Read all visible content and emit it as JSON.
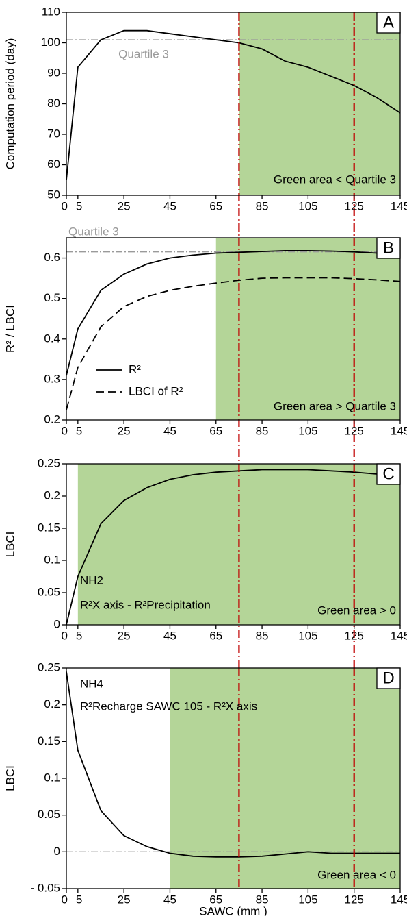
{
  "chart_data": [
    {
      "type": "line",
      "panel": "A",
      "ylabel": "Computation period  (day)",
      "x": [
        0,
        5,
        15,
        25,
        35,
        45,
        55,
        65,
        75,
        85,
        95,
        105,
        115,
        125,
        135,
        145
      ],
      "series": [
        {
          "name": null,
          "color": "#000000",
          "dash": false,
          "values": [
            55,
            92,
            101,
            104,
            104,
            103,
            102,
            101,
            100,
            98,
            94,
            92,
            89,
            86,
            82,
            77
          ]
        }
      ],
      "xlim": [
        0,
        145
      ],
      "xticks": [
        0,
        5,
        25,
        45,
        65,
        85,
        105,
        125,
        145
      ],
      "ylim": [
        50,
        110
      ],
      "yticks": [
        50,
        60,
        70,
        80,
        90,
        100,
        110
      ],
      "shade": [
        75,
        145
      ],
      "vlines": [
        75,
        125
      ],
      "hline": {
        "value": 101,
        "label": "Quartile 3"
      },
      "notes": [
        "Green area < Quartile 3"
      ]
    },
    {
      "type": "line",
      "panel": "B",
      "ylabel": "R² / LBCI",
      "legend": true,
      "x": [
        0,
        5,
        15,
        25,
        35,
        45,
        55,
        65,
        75,
        85,
        95,
        105,
        115,
        125,
        135,
        145
      ],
      "series": [
        {
          "name": "R²",
          "color": "#000000",
          "dash": false,
          "values": [
            0.31,
            0.425,
            0.52,
            0.56,
            0.585,
            0.6,
            0.607,
            0.612,
            0.614,
            0.616,
            0.618,
            0.618,
            0.617,
            0.615,
            0.612,
            0.608
          ]
        },
        {
          "name": "LBCI of R²",
          "color": "#000000",
          "dash": true,
          "values": [
            0.225,
            0.33,
            0.43,
            0.48,
            0.505,
            0.52,
            0.53,
            0.538,
            0.545,
            0.55,
            0.551,
            0.551,
            0.551,
            0.549,
            0.546,
            0.542
          ]
        }
      ],
      "xlim": [
        0,
        145
      ],
      "xticks": [
        0,
        5,
        25,
        45,
        65,
        85,
        105,
        125,
        145
      ],
      "ylim": [
        0.2,
        0.65
      ],
      "yticks": [
        0.2,
        0.3,
        0.4,
        0.5,
        0.6
      ],
      "shade": [
        65,
        145
      ],
      "vlines": [
        75,
        125
      ],
      "hline": {
        "value": 0.615,
        "label": "Quartile 3"
      },
      "notes": [
        "Green area > Quartile 3"
      ]
    },
    {
      "type": "line",
      "panel": "C",
      "ylabel": "LBCI",
      "x": [
        0,
        5,
        15,
        25,
        35,
        45,
        55,
        65,
        75,
        85,
        95,
        105,
        115,
        125,
        135,
        145
      ],
      "series": [
        {
          "name": null,
          "color": "#000000",
          "dash": false,
          "values": [
            0,
            0.075,
            0.157,
            0.193,
            0.213,
            0.226,
            0.233,
            0.237,
            0.239,
            0.241,
            0.241,
            0.241,
            0.239,
            0.237,
            0.234,
            0.233
          ]
        }
      ],
      "xlim": [
        0,
        145
      ],
      "xticks": [
        0,
        5,
        25,
        45,
        65,
        85,
        105,
        125,
        145
      ],
      "ylim": [
        0,
        0.25
      ],
      "yticks": [
        0,
        0.05,
        0.1,
        0.15,
        0.2,
        0.25
      ],
      "shade": [
        5,
        145
      ],
      "vlines": [
        75,
        125
      ],
      "notes": [
        "NH2",
        "R²X axis - R²Precipitation",
        "Green area > 0"
      ]
    },
    {
      "type": "line",
      "panel": "D",
      "ylabel": "LBCI",
      "xlabel": "SAWC (mm )",
      "x": [
        0,
        5,
        15,
        25,
        35,
        45,
        55,
        65,
        75,
        85,
        95,
        105,
        115,
        125,
        135,
        145
      ],
      "series": [
        {
          "name": null,
          "color": "#000000",
          "dash": false,
          "values": [
            0.245,
            0.138,
            0.056,
            0.022,
            0.007,
            -0.002,
            -0.006,
            -0.007,
            -0.007,
            -0.006,
            -0.003,
            0,
            -0.002,
            -0.002,
            -0.002,
            -0.002
          ]
        }
      ],
      "xlim": [
        0,
        145
      ],
      "xticks": [
        0,
        5,
        25,
        45,
        65,
        85,
        105,
        125,
        145
      ],
      "ylim": [
        -0.05,
        0.25
      ],
      "yticks": [
        {
          "value": -0.05,
          "label": "- 0.05"
        },
        0,
        0.05,
        0.1,
        0.15,
        0.2,
        0.25
      ],
      "shade": [
        45,
        145
      ],
      "vlines": [
        75,
        125
      ],
      "hline": {
        "value": 0
      },
      "notes": [
        "NH4",
        "R²Recharge SAWC 105 - R²X axis",
        "Green area < 0"
      ]
    }
  ]
}
